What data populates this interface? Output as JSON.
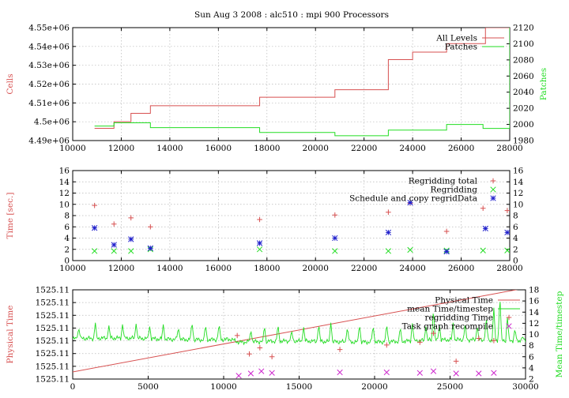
{
  "figure_title": "Sun Aug 3 2008 : alc510 : mpi 900 Processors",
  "colors": {
    "red": "#d75050",
    "green": "#22dd22",
    "blue": "#2020cc",
    "magenta": "#cc22cc"
  },
  "chart_data": [
    {
      "type": "line",
      "title": "Sun Aug 3 2008 : alc510 : mpi 900 Processors",
      "ylabel": "Cells",
      "y2label": "Patches",
      "xlim": [
        10000,
        28000
      ],
      "ylim": [
        4490000,
        4550000
      ],
      "y2lim": [
        1980,
        2120
      ],
      "x_ticks": [
        "10000",
        "12000",
        "14000",
        "16000",
        "18000",
        "20000",
        "22000",
        "24000",
        "26000",
        "28000"
      ],
      "y_ticks": [
        "4.49e+06",
        "4.5e+06",
        "4.51e+06",
        "4.52e+06",
        "4.53e+06",
        "4.54e+06",
        "4.55e+06"
      ],
      "y2_ticks": [
        "1980",
        "2000",
        "2020",
        "2040",
        "2060",
        "2080",
        "2100",
        "2120"
      ],
      "legend_position": "top-right",
      "grid": true,
      "series": [
        {
          "name": "All Levels",
          "axis": "left",
          "step": true,
          "x": [
            10900,
            11700,
            12400,
            13200,
            17700,
            20800,
            23000,
            24000,
            25400,
            27000,
            28000
          ],
          "y": [
            4496500,
            4500000,
            4504500,
            4508500,
            4513000,
            4517000,
            4533000,
            4537000,
            4541500,
            4550000,
            4550000
          ]
        },
        {
          "name": "Patches",
          "axis": "right",
          "step": true,
          "x": [
            10900,
            11700,
            13200,
            17700,
            20800,
            23000,
            25400,
            26900,
            28000
          ],
          "y": [
            1998,
            2002,
            1996,
            1990,
            1986,
            1993,
            2000,
            1995,
            2120
          ]
        }
      ]
    },
    {
      "type": "scatter",
      "ylabel": "Time [sec.]",
      "xlim": [
        10000,
        28000
      ],
      "ylim": [
        0,
        16
      ],
      "x_ticks": [
        "10000",
        "12000",
        "14000",
        "16000",
        "18000",
        "20000",
        "22000",
        "24000",
        "26000",
        "28000"
      ],
      "y_ticks": [
        "0",
        "2",
        "4",
        "6",
        "8",
        "10",
        "12",
        "14",
        "16"
      ],
      "y2_ticks": [
        "0",
        "2",
        "4",
        "6",
        "8",
        "10",
        "12",
        "14",
        "16"
      ],
      "legend_position": "top-right",
      "grid": true,
      "series": [
        {
          "name": "Regridding total",
          "marker": "plus",
          "x": [
            10900,
            11700,
            12400,
            13200,
            17700,
            20800,
            23000,
            23900,
            25400,
            26900,
            27900
          ],
          "y": [
            9.8,
            6.5,
            7.6,
            6.0,
            7.3,
            8.1,
            8.6,
            10.2,
            5.2,
            9.3,
            8.9
          ]
        },
        {
          "name": "Regridding",
          "marker": "cross",
          "x": [
            10900,
            11700,
            12400,
            13200,
            17700,
            20800,
            23000,
            23900,
            25400,
            26900,
            27900
          ],
          "y": [
            1.7,
            1.7,
            1.7,
            2.0,
            2.0,
            1.7,
            1.7,
            1.9,
            1.8,
            1.8,
            1.8
          ]
        },
        {
          "name": "Schedule and copy regridData",
          "marker": "star",
          "x": [
            10900,
            11700,
            12400,
            13200,
            17700,
            20800,
            23000,
            23900,
            25400,
            27000,
            27900
          ],
          "y": [
            5.8,
            2.8,
            3.8,
            2.2,
            3.1,
            4.0,
            5.0,
            10.3,
            1.6,
            5.7,
            5.0
          ]
        }
      ]
    },
    {
      "type": "line",
      "ylabel": "Physical Time",
      "y2label": "Mean Time/timestep",
      "xlim": [
        0,
        30000
      ],
      "y2lim": [
        2,
        18
      ],
      "x_ticks": [
        "0",
        "5000",
        "10000",
        "15000",
        "20000",
        "25000",
        "30000"
      ],
      "y_ticks": [
        "1525.11",
        "1525.11",
        "1525.11",
        "1525.11",
        "1525.11",
        "1525.11",
        "1525.11",
        "1525.11"
      ],
      "y2_ticks": [
        "2",
        "4",
        "6",
        "8",
        "10",
        "12",
        "14",
        "16",
        "18"
      ],
      "legend_position": "top-right",
      "grid": true,
      "series": [
        {
          "name": "Physical Time",
          "axis": "left-normalized",
          "x": [
            0,
            30000
          ],
          "y": [
            0.08,
            1.02
          ]
        },
        {
          "name": "mean Time/timestep",
          "axis": "right",
          "noisy": true,
          "x": [
            0,
            10500,
            11000,
            30000
          ],
          "y": [
            9.2,
            9.2,
            8.6,
            9.0
          ],
          "spikes": [
            [
              400,
              11.2
            ],
            [
              1500,
              12.1
            ],
            [
              2400,
              11.6
            ],
            [
              3300,
              11.8
            ],
            [
              4200,
              11.9
            ],
            [
              5100,
              11.4
            ],
            [
              6000,
              11.8
            ],
            [
              7000,
              11.2
            ],
            [
              7900,
              12.2
            ],
            [
              8800,
              11.7
            ],
            [
              9700,
              11.9
            ],
            [
              11800,
              10.8
            ],
            [
              12700,
              11.6
            ],
            [
              13600,
              11.9
            ],
            [
              14500,
              10.8
            ],
            [
              15300,
              11.3
            ],
            [
              16300,
              11.9
            ],
            [
              17100,
              12.1
            ],
            [
              18200,
              11.3
            ],
            [
              19000,
              11.8
            ],
            [
              19900,
              11.6
            ],
            [
              20800,
              11.9
            ],
            [
              21700,
              11.3
            ],
            [
              22500,
              12.0
            ],
            [
              23400,
              11.4
            ],
            [
              23900,
              14.7
            ],
            [
              24300,
              11.6
            ],
            [
              25200,
              12.1
            ],
            [
              26000,
              12.1
            ],
            [
              26800,
              11.6
            ],
            [
              27400,
              13.3
            ],
            [
              27900,
              14.8
            ],
            [
              28300,
              17.2
            ],
            [
              28800,
              13.1
            ],
            [
              29300,
              11.0
            ],
            [
              29800,
              9.6
            ]
          ]
        },
        {
          "name": "regridding Time",
          "axis": "right",
          "marker": "plus",
          "x": [
            10900,
            11700,
            12400,
            13200,
            17700,
            20800,
            23000,
            23900,
            25400,
            26900,
            27900
          ],
          "y": [
            9.8,
            6.5,
            7.6,
            6.0,
            7.3,
            8.1,
            8.6,
            10.2,
            5.2,
            9.3,
            8.9
          ]
        },
        {
          "name": "Task graph recompile",
          "axis": "right",
          "marker": "cross",
          "x": [
            11000,
            11800,
            12500,
            13200,
            17700,
            20800,
            23000,
            23900,
            25400,
            26900,
            27900
          ],
          "y": [
            2.6,
            3.0,
            3.4,
            3.1,
            3.2,
            3.2,
            3.1,
            3.4,
            3.0,
            3.0,
            3.1
          ]
        }
      ]
    }
  ]
}
